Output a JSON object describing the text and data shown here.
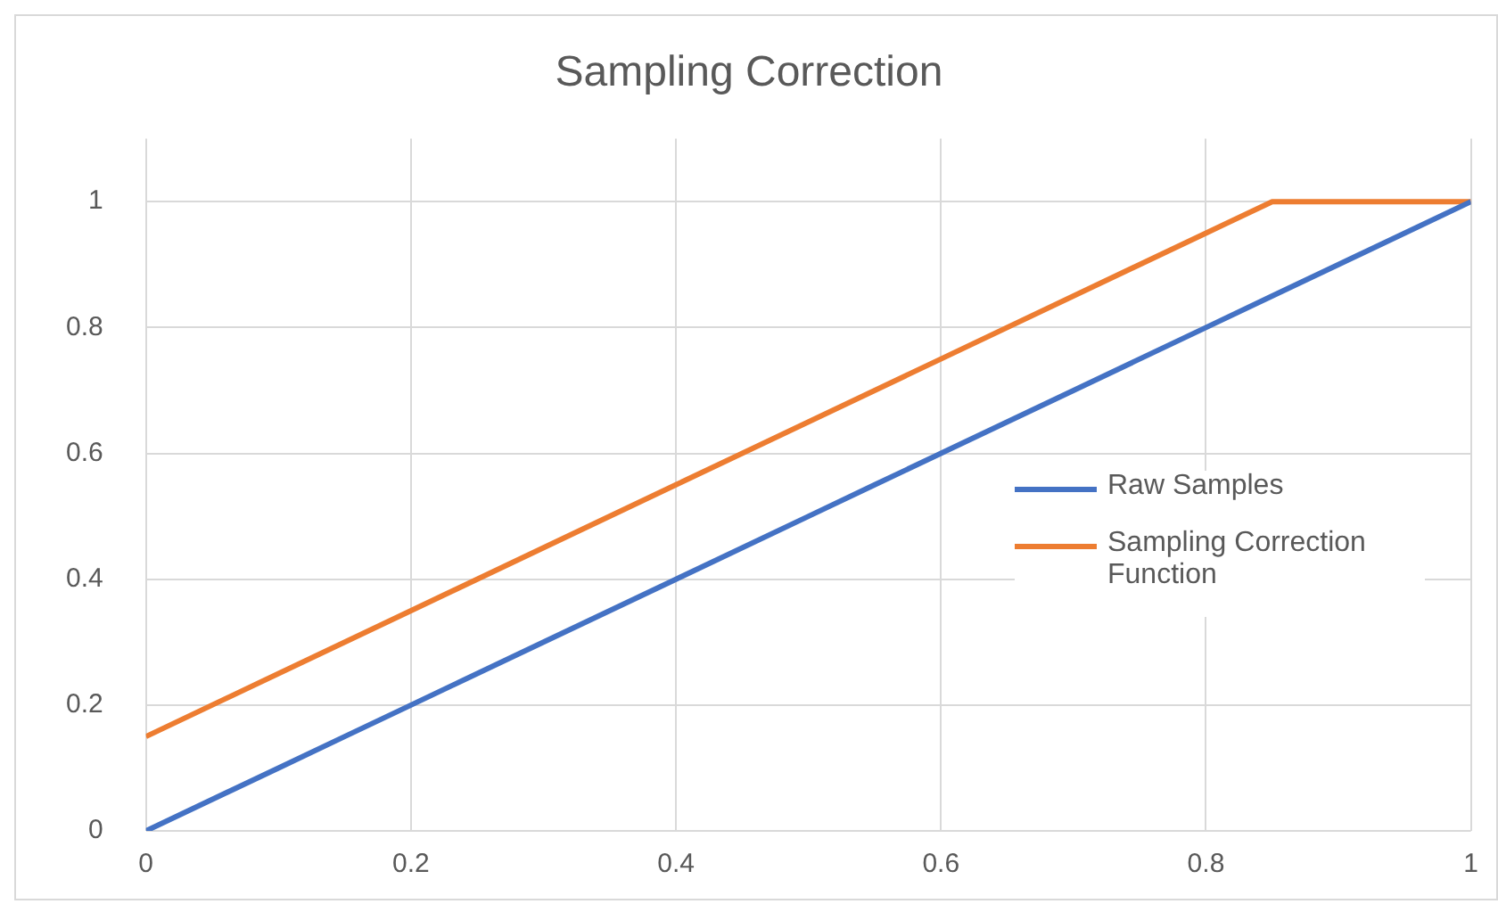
{
  "chart_data": {
    "type": "line",
    "title": "Sampling Correction",
    "xlim": [
      0,
      1
    ],
    "xticks": [
      0,
      0.2,
      0.4,
      0.6,
      0.8,
      1
    ],
    "ylim": [
      0,
      1.1
    ],
    "yticks": [
      0,
      0.2,
      0.4,
      0.6,
      0.8,
      1
    ],
    "grid": true,
    "legend": "right",
    "marker": "none",
    "series": [
      {
        "name": "Raw Samples",
        "color": "#4472c4",
        "x": [
          0,
          0.1,
          0.15,
          0.2,
          0.3,
          0.4,
          0.5,
          0.55,
          0.6,
          0.7,
          0.8,
          0.85,
          0.9,
          1
        ],
        "values": [
          0,
          0.1,
          0.15,
          0.2,
          0.3,
          0.4,
          0.5,
          0.55,
          0.6,
          0.7,
          0.8,
          0.85,
          0.9,
          1
        ]
      },
      {
        "name": "Sampling Correction Function",
        "color": "#ed7d31",
        "x": [
          0,
          0.2,
          0.4,
          0.6,
          0.8,
          0.85,
          1
        ],
        "values": [
          0.15,
          0.35,
          0.55,
          0.75,
          0.95,
          1,
          1
        ]
      }
    ]
  }
}
